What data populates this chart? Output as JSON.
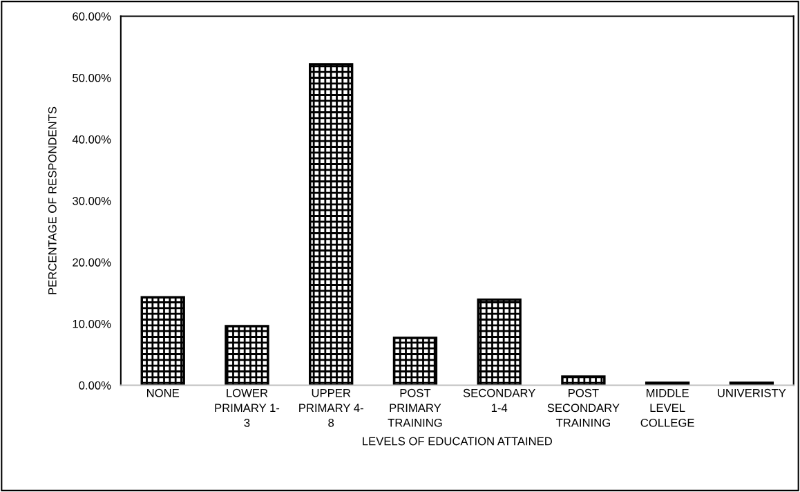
{
  "chart_data": {
    "type": "bar",
    "xlabel": "LEVELS OF EDUCATION ATTAINED",
    "ylabel": "PERCENTAGE OF RESPONDENTS",
    "categories": [
      "NONE",
      "LOWER\nPRIMARY 1-\n3",
      "UPPER\nPRIMARY 4-\n8",
      "POST\nPRIMARY\nTRAINING",
      "SECONDARY\n1-4",
      "POST\nSECONDARY\nTRAINING",
      "MIDDLE\nLEVEL\nCOLLEGE",
      "UNIVERISTY"
    ],
    "values": [
      14.3,
      9.6,
      52.2,
      7.7,
      13.9,
      1.4,
      0.4,
      0.4
    ],
    "color": "#000000",
    "ylim": [
      0,
      60
    ],
    "yticks": [
      {
        "value": 0,
        "label": "0.00%"
      },
      {
        "value": 10,
        "label": "10.00%"
      },
      {
        "value": 20,
        "label": "20.00%"
      },
      {
        "value": 30,
        "label": "30.00%"
      },
      {
        "value": 40,
        "label": "40.00%"
      },
      {
        "value": 50,
        "label": "50.00%"
      },
      {
        "value": 60,
        "label": "60.00%"
      }
    ],
    "grid": false
  }
}
